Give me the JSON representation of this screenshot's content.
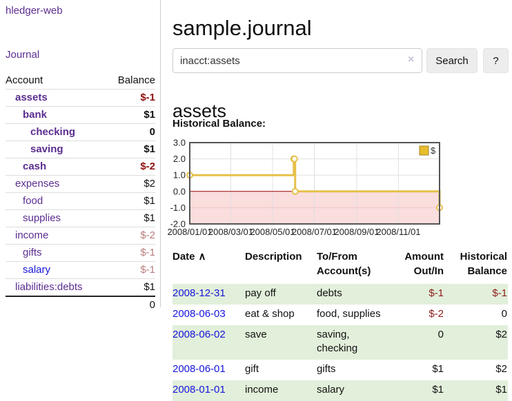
{
  "app": {
    "brand": "hledger-web",
    "nav_journal": "Journal"
  },
  "header": {
    "title": "sample.journal"
  },
  "search": {
    "value": "inacct:assets",
    "clear_icon": "×",
    "button": "Search",
    "help_button": "?"
  },
  "main": {
    "heading": "assets",
    "chart_label": "Historical Balance:"
  },
  "sidebar": {
    "columns": {
      "account": "Account",
      "balance": "Balance"
    },
    "accounts": [
      {
        "name": "assets",
        "balance": "$-1",
        "level": 1,
        "bold": true,
        "name_color": "purple",
        "balance_style": "neg-strong"
      },
      {
        "name": "bank",
        "balance": "$1",
        "level": 2,
        "bold": true,
        "name_color": "purple",
        "balance_style": "bold"
      },
      {
        "name": "checking",
        "balance": "0",
        "level": 3,
        "bold": true,
        "name_color": "purple",
        "balance_style": "bold"
      },
      {
        "name": "saving",
        "balance": "$1",
        "level": 3,
        "bold": true,
        "name_color": "purple",
        "balance_style": "bold"
      },
      {
        "name": "cash",
        "balance": "$-2",
        "level": 2,
        "bold": true,
        "name_color": "purple",
        "balance_style": "neg-strong"
      },
      {
        "name": "expenses",
        "balance": "$2",
        "level": 1,
        "bold": false,
        "name_color": "purple",
        "balance_style": "plain"
      },
      {
        "name": "food",
        "balance": "$1",
        "level": 2,
        "bold": false,
        "name_color": "purple",
        "balance_style": "plain"
      },
      {
        "name": "supplies",
        "balance": "$1",
        "level": 2,
        "bold": false,
        "name_color": "purple",
        "balance_style": "plain"
      },
      {
        "name": "income",
        "balance": "$-2",
        "level": 1,
        "bold": false,
        "name_color": "purple",
        "balance_style": "neg-soft"
      },
      {
        "name": "gifts",
        "balance": "$-1",
        "level": 2,
        "bold": false,
        "name_color": "purple",
        "balance_style": "neg-soft"
      },
      {
        "name": "salary",
        "balance": "$-1",
        "level": 2,
        "bold": false,
        "name_color": "blue",
        "balance_style": "neg-soft"
      },
      {
        "name": "liabilities:debts",
        "balance": "$1",
        "level": 1,
        "bold": false,
        "name_color": "purple",
        "balance_style": "plain"
      }
    ],
    "total": "0"
  },
  "chart_data": {
    "type": "line",
    "style": "step-after",
    "title": "Historical Balance",
    "legend": [
      "$"
    ],
    "legend_position": "top-right",
    "ylim": [
      -2,
      3
    ],
    "y_ticks": [
      3,
      2,
      1,
      0,
      -1,
      -2
    ],
    "y_tick_labels": [
      "3.0",
      "2.0",
      "1.0",
      "0.0",
      "-1.0",
      "-2.0"
    ],
    "x_domain": [
      "2008-01-01",
      "2008-12-31"
    ],
    "x_ticks": [
      {
        "date": "2008-01-01",
        "label": "2008/01/01"
      },
      {
        "date": "2008-03-01",
        "label": "2008/03/01"
      },
      {
        "date": "2008-05-01",
        "label": "2008/05/01"
      },
      {
        "date": "2008-07-01",
        "label": "2008/07/01"
      },
      {
        "date": "2008-09-01",
        "label": "2008/09/01"
      },
      {
        "date": "2008-11-01",
        "label": "2008/11/01"
      }
    ],
    "series": [
      {
        "name": "$",
        "points": [
          {
            "date": "2008-01-01",
            "value": 1
          },
          {
            "date": "2008-06-01",
            "value": 2
          },
          {
            "date": "2008-06-02",
            "value": 2
          },
          {
            "date": "2008-06-03",
            "value": 0
          },
          {
            "date": "2008-12-31",
            "value": -1
          }
        ]
      }
    ],
    "colors": {
      "line": "#e6c04a",
      "marker_fill": "#ffffff",
      "legend_fill": "#e8bd2b",
      "legend_border": "#a68325",
      "zero_line": "#990000",
      "grid": "#e0e0e0",
      "grid_negative": "#eec6c6",
      "negative_region_fill": "#fadddd",
      "plot_border": "#555555"
    }
  },
  "register": {
    "columns": [
      "Date",
      "Description",
      "To/From Account(s)",
      "Amount Out/In",
      "Historical Balance"
    ],
    "sort_icon": "∧",
    "rows": [
      {
        "date": "2008-12-31",
        "description": "pay off",
        "accounts": "debts",
        "amount": "$-1",
        "amount_neg": true,
        "balance": "$-1",
        "balance_neg": true
      },
      {
        "date": "2008-06-03",
        "description": "eat & shop",
        "accounts": "food, supplies",
        "amount": "$-2",
        "amount_neg": true,
        "balance": "0",
        "balance_neg": false
      },
      {
        "date": "2008-06-02",
        "description": "save",
        "accounts": "saving, checking",
        "amount": "0",
        "amount_neg": false,
        "balance": "$2",
        "balance_neg": false
      },
      {
        "date": "2008-06-01",
        "description": "gift",
        "accounts": "gifts",
        "amount": "$1",
        "amount_neg": false,
        "balance": "$2",
        "balance_neg": false
      },
      {
        "date": "2008-01-01",
        "description": "income",
        "accounts": "salary",
        "amount": "$1",
        "amount_neg": false,
        "balance": "$1",
        "balance_neg": false
      }
    ]
  }
}
